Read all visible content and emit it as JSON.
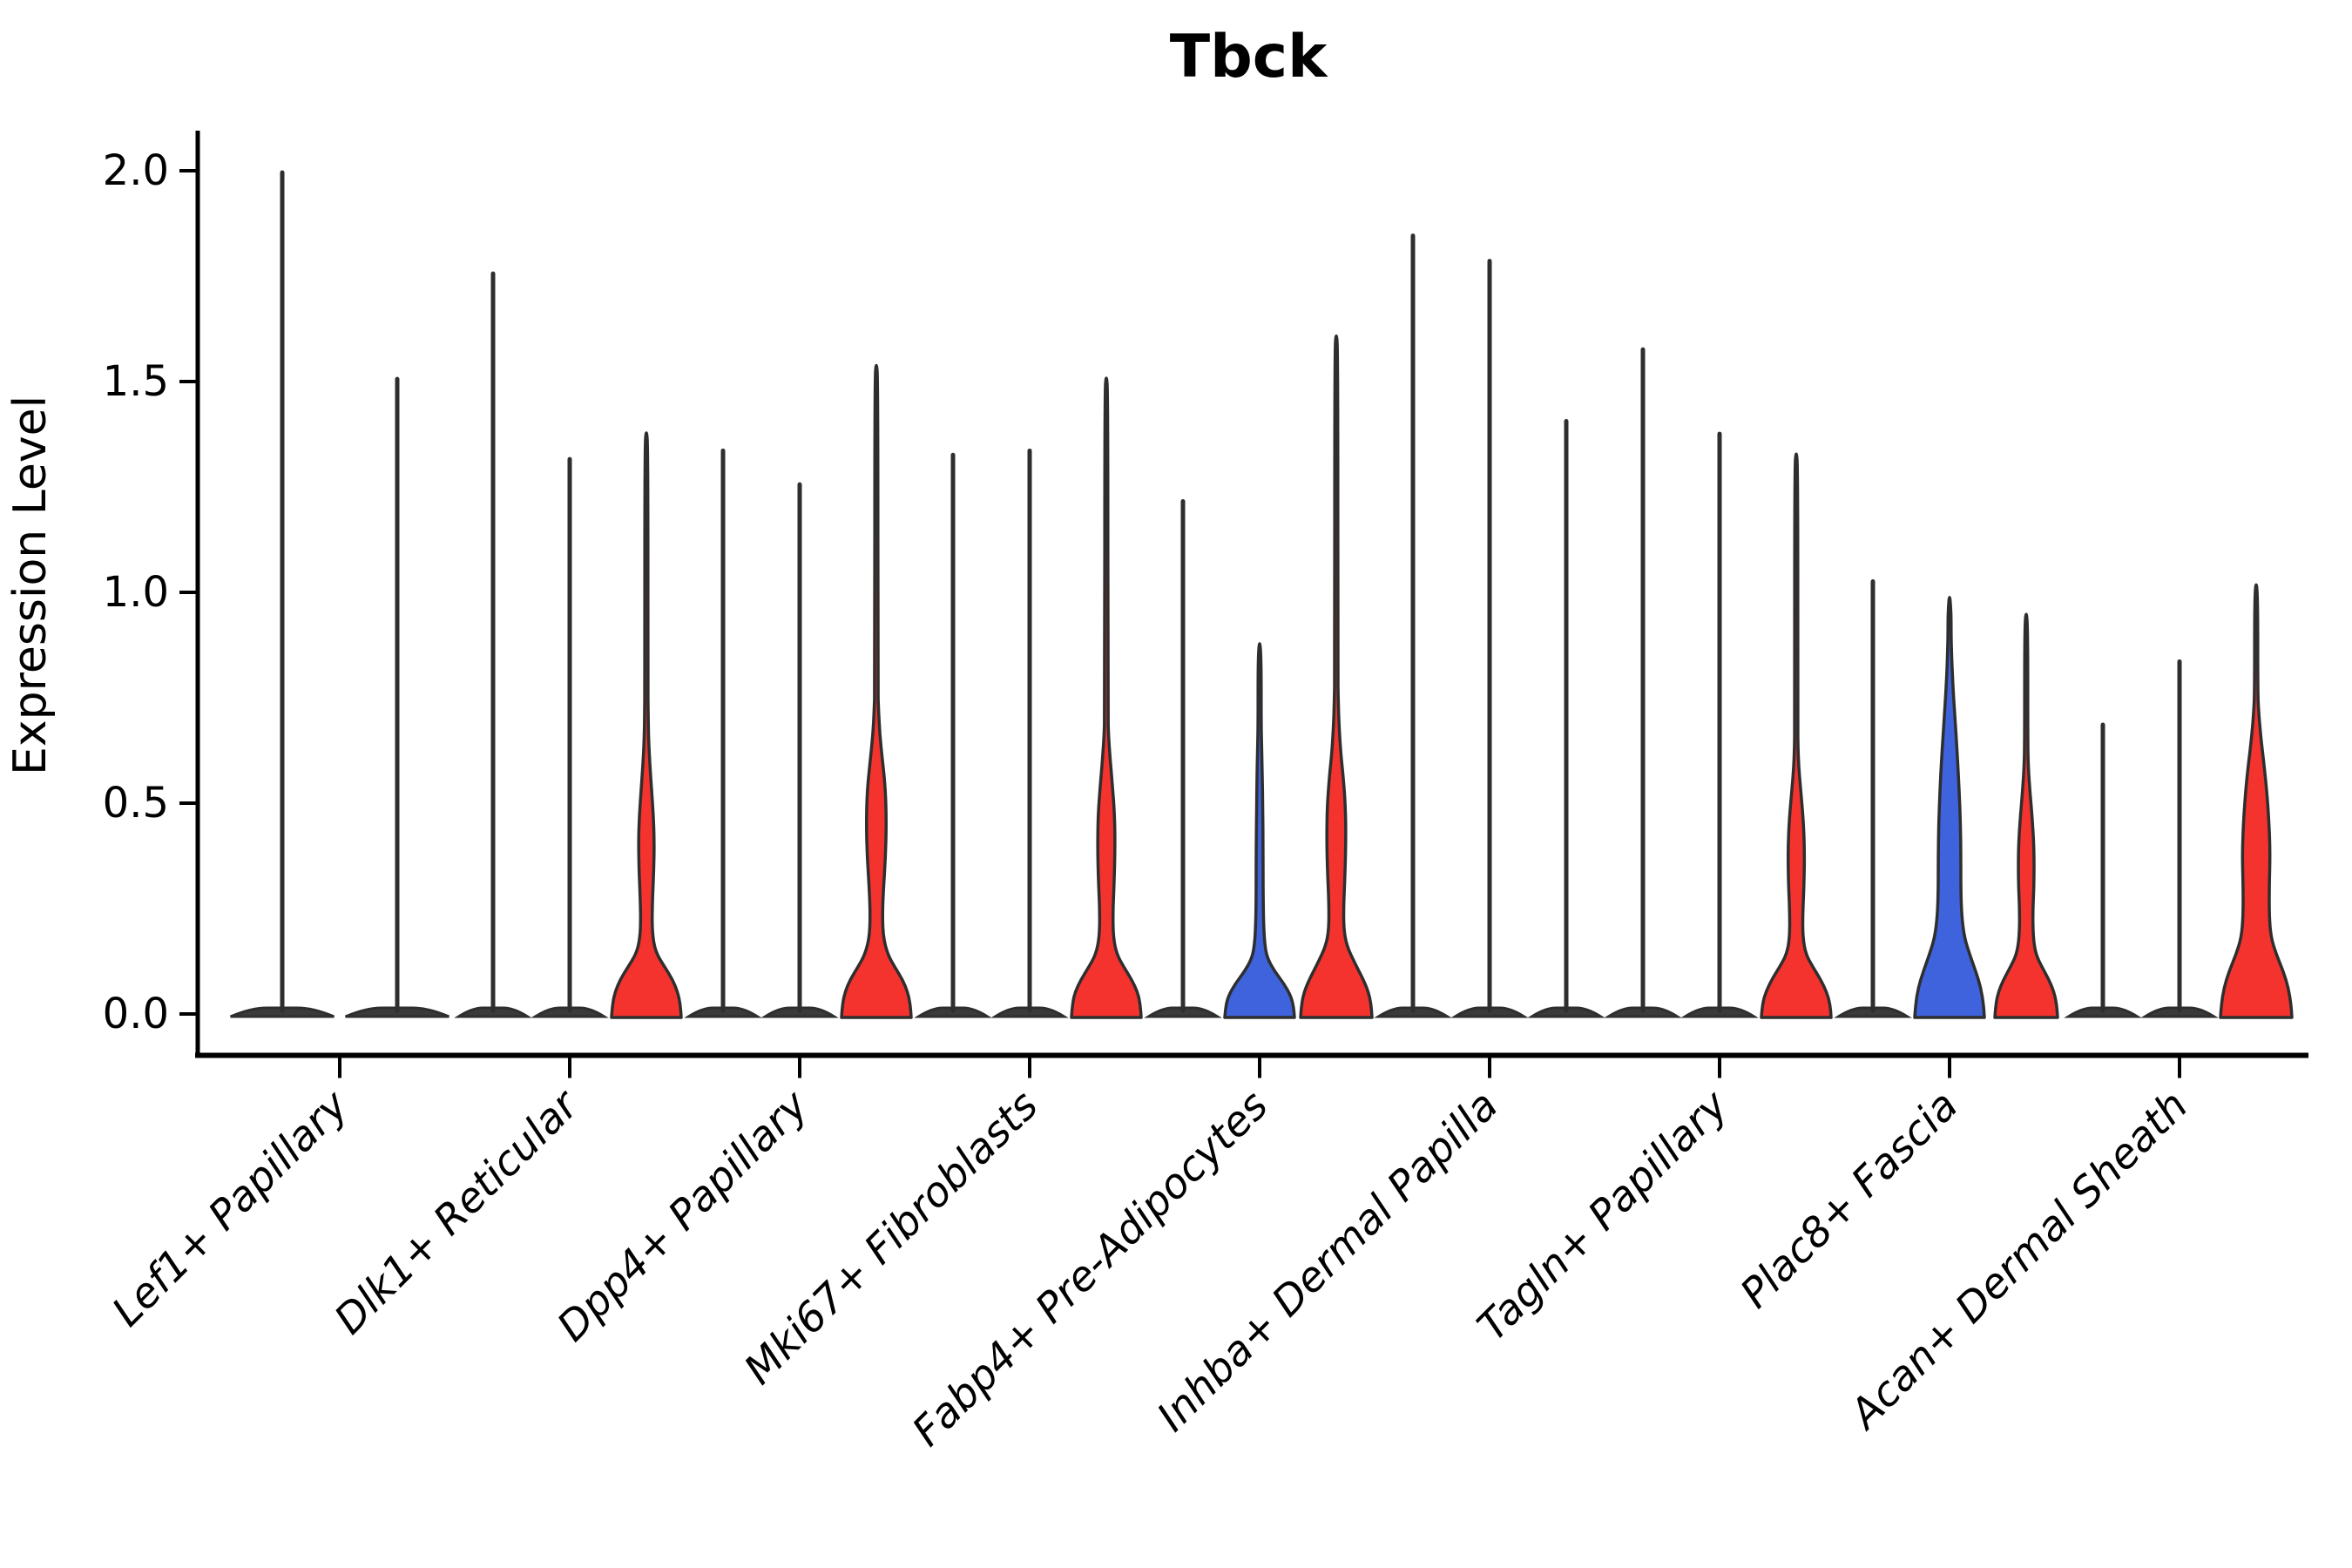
{
  "title": "Tbck",
  "y_axis": {
    "label": "Expression Level",
    "tick_labels": [
      "0.0",
      "0.5",
      "1.0",
      "1.5",
      "2.0"
    ],
    "tick_values": [
      0.0,
      0.5,
      1.0,
      1.5,
      2.0
    ]
  },
  "colors": {
    "red": "#f5332e",
    "blue": "#3e63dc",
    "outline": "#2e2e2e",
    "pancake_fill": "#3a3a3a",
    "axis": "#000000"
  },
  "chart_data": {
    "type": "violin",
    "title": "Tbck",
    "xlabel": "",
    "ylabel": "Expression Level",
    "ylim": [
      0,
      2.05
    ],
    "grid": false,
    "legend": "none",
    "categories": [
      "Lef1+ Papillary",
      "Dlk1+ Reticular",
      "Dpp4+ Papillary",
      "Mki67+ Fibroblasts",
      "Fabp4+ Pre-Adipocytes",
      "Inhba+ Dermal Papilla",
      "Tagln+ Papillary",
      "Plac8+ Fascia",
      "Acan+ Dermal Sheath"
    ],
    "groups": [
      {
        "category": "Lef1+ Papillary",
        "violins": [
          {
            "max": 2.0,
            "fill": "none"
          },
          {
            "max": 1.51,
            "fill": "none"
          }
        ]
      },
      {
        "category": "Dlk1+ Reticular",
        "violins": [
          {
            "max": 1.76,
            "fill": "none"
          },
          {
            "max": 1.32,
            "fill": "none"
          },
          {
            "max": 1.39,
            "fill": "red",
            "profile": [
              [
                0.0,
                40
              ],
              [
                0.03,
                39
              ],
              [
                0.06,
                36
              ],
              [
                0.09,
                30
              ],
              [
                0.12,
                21
              ],
              [
                0.15,
                12
              ],
              [
                0.18,
                8
              ],
              [
                0.22,
                6.5
              ],
              [
                0.28,
                7
              ],
              [
                0.35,
                8.5
              ],
              [
                0.42,
                9
              ],
              [
                0.48,
                8
              ],
              [
                0.54,
                6
              ],
              [
                0.6,
                4
              ],
              [
                0.66,
                2.5
              ],
              [
                0.73,
                2
              ]
            ]
          }
        ]
      },
      {
        "category": "Dpp4+ Papillary",
        "violins": [
          {
            "max": 1.34,
            "fill": "none"
          },
          {
            "max": 1.26,
            "fill": "none"
          },
          {
            "max": 1.55,
            "fill": "red",
            "profile": [
              [
                0.0,
                40
              ],
              [
                0.03,
                39
              ],
              [
                0.06,
                36
              ],
              [
                0.09,
                30
              ],
              [
                0.12,
                21
              ],
              [
                0.15,
                13
              ],
              [
                0.19,
                8
              ],
              [
                0.24,
                7
              ],
              [
                0.3,
                8
              ],
              [
                0.38,
                10.5
              ],
              [
                0.46,
                11.5
              ],
              [
                0.54,
                10.5
              ],
              [
                0.61,
                7
              ],
              [
                0.67,
                4
              ],
              [
                0.73,
                2.5
              ]
            ]
          }
        ]
      },
      {
        "category": "Mki67+ Fibroblasts",
        "violins": [
          {
            "max": 1.33,
            "fill": "none"
          },
          {
            "max": 1.34,
            "fill": "none"
          },
          {
            "max": 1.52,
            "fill": "red",
            "profile": [
              [
                0.0,
                40
              ],
              [
                0.03,
                39
              ],
              [
                0.06,
                36
              ],
              [
                0.09,
                29
              ],
              [
                0.12,
                20
              ],
              [
                0.15,
                12
              ],
              [
                0.19,
                8
              ],
              [
                0.25,
                7.5
              ],
              [
                0.32,
                9
              ],
              [
                0.4,
                10
              ],
              [
                0.48,
                9.5
              ],
              [
                0.55,
                7
              ],
              [
                0.61,
                4.5
              ],
              [
                0.67,
                2.5
              ]
            ]
          }
        ]
      },
      {
        "category": "Fabp4+ Pre-Adipocytes",
        "violins": [
          {
            "max": 1.22,
            "fill": "none"
          },
          {
            "max": 0.89,
            "fill": "blue",
            "profile": [
              [
                0.0,
                40
              ],
              [
                0.025,
                39
              ],
              [
                0.05,
                36
              ],
              [
                0.08,
                28
              ],
              [
                0.11,
                17
              ],
              [
                0.14,
                9
              ],
              [
                0.17,
                6
              ],
              [
                0.22,
                4.5
              ],
              [
                0.3,
                4
              ],
              [
                0.4,
                4
              ],
              [
                0.5,
                3.5
              ],
              [
                0.58,
                3
              ],
              [
                0.65,
                2.2
              ]
            ]
          },
          {
            "max": 1.62,
            "fill": "red",
            "profile": [
              [
                0.0,
                41
              ],
              [
                0.03,
                40
              ],
              [
                0.06,
                37
              ],
              [
                0.09,
                31
              ],
              [
                0.13,
                21
              ],
              [
                0.17,
                12
              ],
              [
                0.21,
                8.5
              ],
              [
                0.27,
                8.5
              ],
              [
                0.34,
                10
              ],
              [
                0.42,
                11
              ],
              [
                0.5,
                10.5
              ],
              [
                0.57,
                8
              ],
              [
                0.63,
                5
              ],
              [
                0.7,
                3
              ],
              [
                0.76,
                2.2
              ]
            ]
          }
        ]
      },
      {
        "category": "Inhba+ Dermal Papilla",
        "violins": [
          {
            "max": 1.85,
            "fill": "none"
          },
          {
            "max": 1.79,
            "fill": "none"
          },
          {
            "max": 1.41,
            "fill": "none"
          }
        ]
      },
      {
        "category": "Tagln+ Papillary",
        "violins": [
          {
            "max": 1.58,
            "fill": "none"
          },
          {
            "max": 1.38,
            "fill": "none"
          },
          {
            "max": 1.34,
            "fill": "red",
            "profile": [
              [
                0.0,
                40
              ],
              [
                0.03,
                39
              ],
              [
                0.06,
                35
              ],
              [
                0.09,
                28
              ],
              [
                0.12,
                19
              ],
              [
                0.15,
                11
              ],
              [
                0.19,
                7.5
              ],
              [
                0.25,
                7.5
              ],
              [
                0.32,
                9
              ],
              [
                0.4,
                9.5
              ],
              [
                0.47,
                8
              ],
              [
                0.53,
                5.5
              ],
              [
                0.59,
                3
              ],
              [
                0.64,
                2
              ]
            ]
          }
        ]
      },
      {
        "category": "Plac8+ Fascia",
        "violins": [
          {
            "max": 1.03,
            "fill": "none"
          },
          {
            "max": 1.0,
            "fill": "blue",
            "profile": [
              [
                0.0,
                40
              ],
              [
                0.03,
                39
              ],
              [
                0.07,
                36
              ],
              [
                0.11,
                30
              ],
              [
                0.15,
                23
              ],
              [
                0.19,
                17
              ],
              [
                0.24,
                14
              ],
              [
                0.3,
                13
              ],
              [
                0.38,
                13
              ],
              [
                0.46,
                12.5
              ],
              [
                0.54,
                11
              ],
              [
                0.62,
                9
              ],
              [
                0.7,
                6.5
              ],
              [
                0.78,
                4
              ],
              [
                0.85,
                2.5
              ]
            ]
          },
          {
            "max": 0.96,
            "fill": "red",
            "profile": [
              [
                0.0,
                36
              ],
              [
                0.03,
                35
              ],
              [
                0.06,
                32
              ],
              [
                0.09,
                26
              ],
              [
                0.12,
                18
              ],
              [
                0.15,
                11
              ],
              [
                0.19,
                8
              ],
              [
                0.25,
                7.5
              ],
              [
                0.32,
                9
              ],
              [
                0.4,
                9
              ],
              [
                0.47,
                7
              ],
              [
                0.53,
                4.5
              ],
              [
                0.59,
                2.5
              ]
            ]
          }
        ]
      },
      {
        "category": "Acan+ Dermal Sheath",
        "violins": [
          {
            "max": 0.69,
            "fill": "none"
          },
          {
            "max": 0.84,
            "fill": "none"
          },
          {
            "max": 1.03,
            "fill": "red",
            "profile": [
              [
                0.0,
                41
              ],
              [
                0.03,
                40
              ],
              [
                0.07,
                37
              ],
              [
                0.11,
                31
              ],
              [
                0.15,
                23
              ],
              [
                0.19,
                17
              ],
              [
                0.24,
                15
              ],
              [
                0.31,
                15
              ],
              [
                0.39,
                16
              ],
              [
                0.47,
                14.5
              ],
              [
                0.54,
                12
              ],
              [
                0.6,
                9
              ],
              [
                0.66,
                5.5
              ],
              [
                0.72,
                3
              ]
            ]
          }
        ]
      }
    ]
  }
}
